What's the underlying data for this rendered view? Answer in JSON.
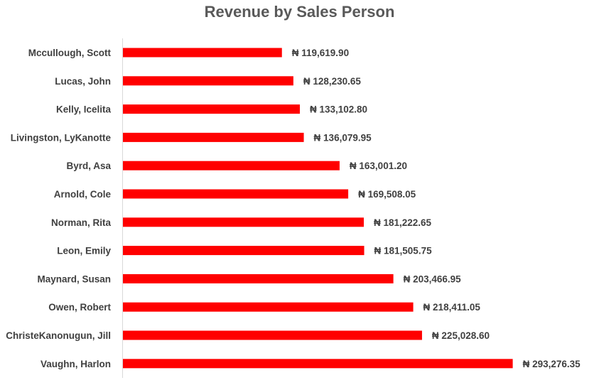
{
  "chart_data": {
    "type": "bar",
    "orientation": "horizontal",
    "title": "Revenue by Sales Person",
    "xlabel": "",
    "ylabel": "",
    "grid": false,
    "legend": "none",
    "bar_color": "#ff0000",
    "currency_prefix": "₦ ",
    "xlim": [
      0,
      300000
    ],
    "categories": [
      "Mccullough, Scott",
      "Lucas, John",
      "Kelly, Icelita",
      "Livingston, LyKanotte",
      "Byrd, Asa",
      "Arnold, Cole",
      "Norman, Rita",
      "Leon, Emily",
      "Maynard, Susan",
      "Owen, Robert",
      "ChristeKanonugun, Jill",
      "Vaughn, Harlon"
    ],
    "values": [
      119619.9,
      128230.65,
      133102.8,
      136079.95,
      163001.2,
      169508.05,
      181222.65,
      181505.75,
      203466.95,
      218411.05,
      225028.6,
      293276.35
    ],
    "value_labels": [
      "₦ 119,619.90",
      "₦ 128,230.65",
      "₦ 133,102.80",
      "₦ 136,079.95",
      "₦ 163,001.20",
      "₦ 169,508.05",
      "₦ 181,222.65",
      "₦ 181,505.75",
      "₦ 203,466.95",
      "₦ 218,411.05",
      "₦ 225,028.60",
      "₦ 293,276.35"
    ]
  }
}
